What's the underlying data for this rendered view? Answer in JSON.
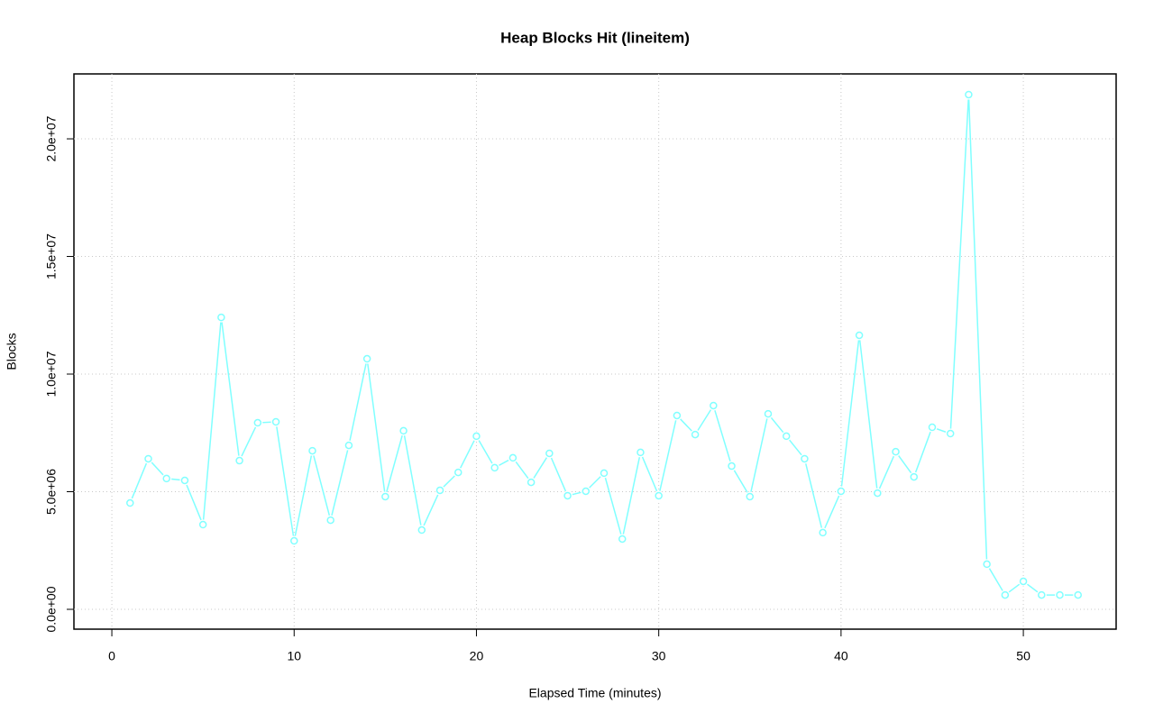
{
  "chart_data": {
    "type": "line",
    "title": "Heap Blocks Hit (lineitem)",
    "x_label": "Elapsed Time (minutes)",
    "y_label": "Blocks",
    "x": [
      1,
      2,
      3,
      4,
      5,
      6,
      7,
      8,
      9,
      10,
      11,
      12,
      13,
      14,
      15,
      16,
      17,
      18,
      19,
      20,
      21,
      22,
      23,
      24,
      25,
      26,
      27,
      28,
      29,
      30,
      31,
      32,
      33,
      34,
      35,
      36,
      37,
      38,
      39,
      40,
      41,
      42,
      43,
      44,
      45,
      46,
      47,
      48,
      49,
      50,
      51,
      52,
      53
    ],
    "series": [
      {
        "color": "#80ffff",
        "values": [
          4520000,
          6400000,
          5560000,
          5480000,
          3600000,
          12410000,
          6320000,
          7930000,
          7970000,
          2910000,
          6740000,
          3790000,
          6970000,
          10650000,
          4790000,
          7590000,
          3370000,
          5060000,
          5820000,
          7360000,
          6020000,
          6440000,
          5400000,
          6630000,
          4830000,
          5020000,
          5790000,
          2990000,
          6670000,
          4830000,
          8240000,
          7430000,
          8660000,
          6090000,
          4790000,
          8310000,
          7360000,
          6400000,
          3260000,
          5020000,
          11650000,
          4940000,
          6700000,
          5630000,
          7740000,
          7470000,
          21880000,
          1920000,
          610000,
          1190000,
          610000,
          610000,
          610000
        ]
      }
    ],
    "xlim": [
      -2.08,
      55.09
    ],
    "ylim": [
      -843000,
      22760000
    ],
    "xticks": [
      0,
      10,
      20,
      30,
      40,
      50
    ],
    "yticks": [
      {
        "value": 0,
        "label": "0.0e+00"
      },
      {
        "value": 5000000,
        "label": "5.0e+06"
      },
      {
        "value": 10000000,
        "label": "1.0e+07"
      },
      {
        "value": 15000000,
        "label": "1.5e+07"
      },
      {
        "value": 20000000,
        "label": "2.0e+07"
      }
    ],
    "grid": true
  }
}
